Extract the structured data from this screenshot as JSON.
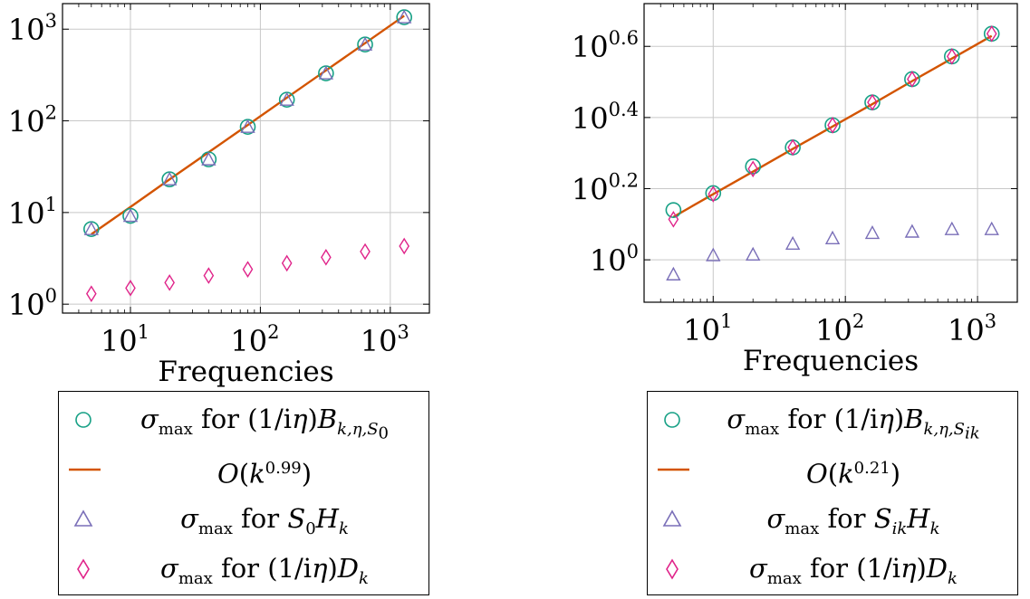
{
  "colors": {
    "teal": "#16a085",
    "orange": "#d35400",
    "purple": "#7a6fb8",
    "magenta": "#e0248a",
    "grid": "#c8c8c8"
  },
  "chart_data": [
    {
      "type": "scatter",
      "xscale": "log",
      "yscale": "log",
      "xlabel": "Frequencies",
      "ylabel": "",
      "xlim": [
        3,
        2000
      ],
      "ylim": [
        0.8,
        1900
      ],
      "xticks": [
        10,
        100,
        1000
      ],
      "xtick_labels": [
        {
          "base": "10",
          "exp": "1"
        },
        {
          "base": "10",
          "exp": "2"
        },
        {
          "base": "10",
          "exp": "3"
        }
      ],
      "yticks": [
        1,
        10,
        100,
        1000
      ],
      "ytick_labels": [
        {
          "base": "10",
          "exp": "0"
        },
        {
          "base": "10",
          "exp": "1"
        },
        {
          "base": "10",
          "exp": "2"
        },
        {
          "base": "10",
          "exp": "3"
        }
      ],
      "grid": true,
      "legend_position": "below",
      "x": [
        5,
        10,
        20,
        40,
        80,
        160,
        320,
        640,
        1280
      ],
      "series": [
        {
          "name": "σmax for (1/iη)Bk,η,S0",
          "marker": "circle",
          "color": "teal",
          "values": [
            6.6,
            9.2,
            23,
            38,
            86,
            170,
            330,
            680,
            1350
          ]
        },
        {
          "name": "O(k0.99)",
          "marker": "line",
          "color": "orange",
          "values": [
            5.8,
            11.5,
            23,
            45.5,
            90,
            179,
            355,
            704,
            1400
          ]
        },
        {
          "name": "σmax for S0Hk",
          "marker": "triangle",
          "color": "purple",
          "values": [
            6.6,
            9.2,
            23,
            38,
            86,
            170,
            330,
            680,
            1350
          ]
        },
        {
          "name": "σmax for (1/iη)Dk",
          "marker": "diamond",
          "color": "magenta",
          "values": [
            1.3,
            1.5,
            1.72,
            2.05,
            2.4,
            2.8,
            3.25,
            3.75,
            4.3
          ]
        }
      ],
      "legend": [
        {
          "marker": "circle",
          "color": "teal",
          "parts": [
            "σ",
            "max",
            " for (1/i",
            "η",
            ")",
            "B",
            "k,η,S",
            "0"
          ]
        },
        {
          "marker": "line",
          "color": "orange",
          "parts": [
            "O",
            "(",
            "k",
            "0.99",
            ")"
          ]
        },
        {
          "marker": "triangle",
          "color": "purple",
          "parts": [
            "σ",
            "max",
            " for ",
            "S",
            "0",
            "H",
            "k"
          ]
        },
        {
          "marker": "diamond",
          "color": "magenta",
          "parts": [
            "σ",
            "max",
            " for (1/i",
            "η",
            ")",
            "D",
            "k"
          ]
        }
      ]
    },
    {
      "type": "scatter",
      "xscale": "log",
      "yscale": "log",
      "xlabel": "Frequencies",
      "ylabel": "",
      "xlim": [
        3,
        2000
      ],
      "ylim": [
        0.76,
        5.25
      ],
      "xticks": [
        10,
        100,
        1000
      ],
      "xtick_labels": [
        {
          "base": "10",
          "exp": "1"
        },
        {
          "base": "10",
          "exp": "2"
        },
        {
          "base": "10",
          "exp": "3"
        }
      ],
      "yticks": [
        1,
        1.585,
        2.512,
        3.981
      ],
      "ytick_labels": [
        {
          "base": "10",
          "exp": "0"
        },
        {
          "base": "10",
          "exp": "0.2"
        },
        {
          "base": "10",
          "exp": "0.4"
        },
        {
          "base": "10",
          "exp": "0.6"
        }
      ],
      "grid": true,
      "legend_position": "below",
      "x": [
        5,
        10,
        20,
        40,
        80,
        160,
        320,
        640,
        1280
      ],
      "series": [
        {
          "name": "σmax for (1/iη)Bk,η,Sik",
          "marker": "circle",
          "color": "teal",
          "values": [
            1.38,
            1.54,
            1.83,
            2.07,
            2.39,
            2.77,
            3.22,
            3.73,
            4.32
          ]
        },
        {
          "name": "O(k0.21)",
          "marker": "line",
          "color": "orange",
          "values": [
            1.32,
            1.53,
            1.77,
            2.05,
            2.37,
            2.74,
            3.18,
            3.68,
            4.26
          ]
        },
        {
          "name": "σmax for SikHk",
          "marker": "triangle",
          "color": "purple",
          "values": [
            0.91,
            1.03,
            1.035,
            1.11,
            1.15,
            1.19,
            1.2,
            1.22,
            1.22
          ]
        },
        {
          "name": "σmax for (1/iη)Dk",
          "marker": "diamond",
          "color": "magenta",
          "values": [
            1.3,
            1.53,
            1.8,
            2.07,
            2.39,
            2.77,
            3.22,
            3.73,
            4.32
          ]
        }
      ],
      "legend": [
        {
          "marker": "circle",
          "color": "teal",
          "parts": [
            "σ",
            "max",
            " for (1/i",
            "η",
            ")",
            "B",
            "k,η,S",
            "ik"
          ]
        },
        {
          "marker": "line",
          "color": "orange",
          "parts": [
            "O",
            "(",
            "k",
            "0.21",
            ")"
          ]
        },
        {
          "marker": "triangle",
          "color": "purple",
          "parts": [
            "σ",
            "max",
            " for ",
            "S",
            "ik",
            "H",
            "k"
          ]
        },
        {
          "marker": "diamond",
          "color": "magenta",
          "parts": [
            "σ",
            "max",
            " for (1/i",
            "η",
            ")",
            "D",
            "k"
          ]
        }
      ]
    }
  ]
}
